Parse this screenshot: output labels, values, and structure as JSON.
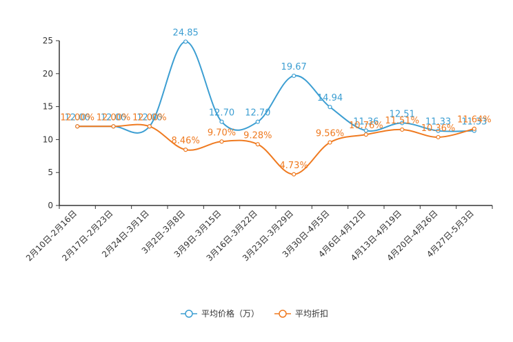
{
  "chart_data": {
    "type": "line",
    "categories": [
      "2月10日-2月16日",
      "2月17日-2月23日",
      "2月24日-3月1日",
      "3月2日-3月8日",
      "3月9日-3月15日",
      "3月16日-3月22日",
      "3月23日-3月29日",
      "3月30日-4月5日",
      "4月6日-4月12日",
      "4月13日-4月19日",
      "4月20日-4月26日",
      "4月27日-5月3日"
    ],
    "series": [
      {
        "name": "平均价格（万）",
        "color": "#3c9ed2",
        "values": [
          12.0,
          12.0,
          12.0,
          24.85,
          12.7,
          12.7,
          19.67,
          14.94,
          11.36,
          12.51,
          11.33,
          11.33
        ],
        "labels": [
          "12.00",
          "12.00",
          "12.00",
          "24.85",
          "12.70",
          "12.70",
          "19.67",
          "14.94",
          "11.36",
          "12.51",
          "11.33",
          "11.33"
        ]
      },
      {
        "name": "平均折扣",
        "color": "#ef7a20",
        "values": [
          12.0,
          12.0,
          12.0,
          8.46,
          9.7,
          9.28,
          4.73,
          9.56,
          10.76,
          11.51,
          10.36,
          11.64
        ],
        "labels": [
          "12.00%",
          "12.00%",
          "12.00%",
          "8.46%",
          "9.70%",
          "9.28%",
          "4.73%",
          "9.56%",
          "10.76%",
          "11.51%",
          "10.36%",
          "11.64%"
        ]
      }
    ],
    "yticks": [
      "0",
      "5",
      "10",
      "15",
      "20",
      "25"
    ],
    "ylim": [
      0,
      25
    ],
    "title": "",
    "xlabel": "",
    "ylabel": "",
    "grid": false,
    "legend": "bottom-center"
  }
}
